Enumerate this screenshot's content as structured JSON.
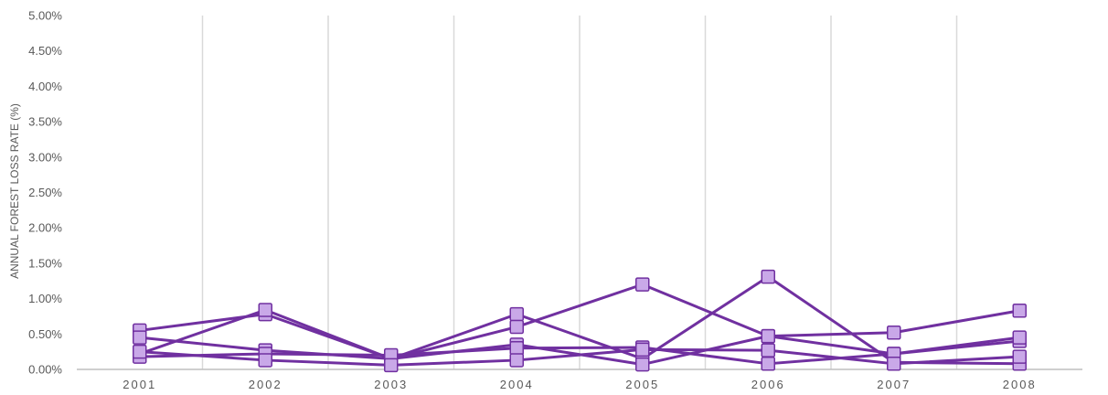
{
  "chart_data": {
    "type": "line",
    "ylabel": "ANNUAL FOREST LOSS RATE (%)",
    "xlabel": "",
    "title": "",
    "categories": [
      "2001",
      "2002",
      "2003",
      "2004",
      "2005",
      "2006",
      "2007",
      "2008"
    ],
    "ylim": [
      0,
      5
    ],
    "ytick_labels": [
      "0.00%",
      "0.50%",
      "1.00%",
      "1.50%",
      "2.00%",
      "2.50%",
      "3.00%",
      "3.50%",
      "4.00%",
      "4.50%",
      "5.00%"
    ],
    "grid": "vertical",
    "legend": "none",
    "marker": "square",
    "colors": {
      "line": "#7030A0",
      "marker_fill": "#C9A8E8",
      "marker_edge": "#7030A0",
      "grid": "#D9D9D9",
      "axis": "#BFBFBF",
      "text": "#595959"
    },
    "series": [
      {
        "values": [
          0.55,
          0.78,
          0.15,
          0.78,
          0.15,
          1.31,
          0.1,
          0.08
        ]
      },
      {
        "values": [
          0.22,
          0.84,
          0.15,
          0.6,
          1.2,
          0.47,
          0.22,
          0.4
        ]
      },
      {
        "values": [
          0.45,
          0.27,
          0.15,
          0.35,
          0.07,
          0.47,
          0.52,
          0.83
        ]
      },
      {
        "values": [
          0.18,
          0.22,
          0.2,
          0.3,
          0.31,
          0.08,
          0.22,
          0.45
        ]
      },
      {
        "values": [
          0.25,
          0.13,
          0.06,
          0.13,
          0.28,
          0.27,
          0.08,
          0.18
        ]
      }
    ]
  }
}
